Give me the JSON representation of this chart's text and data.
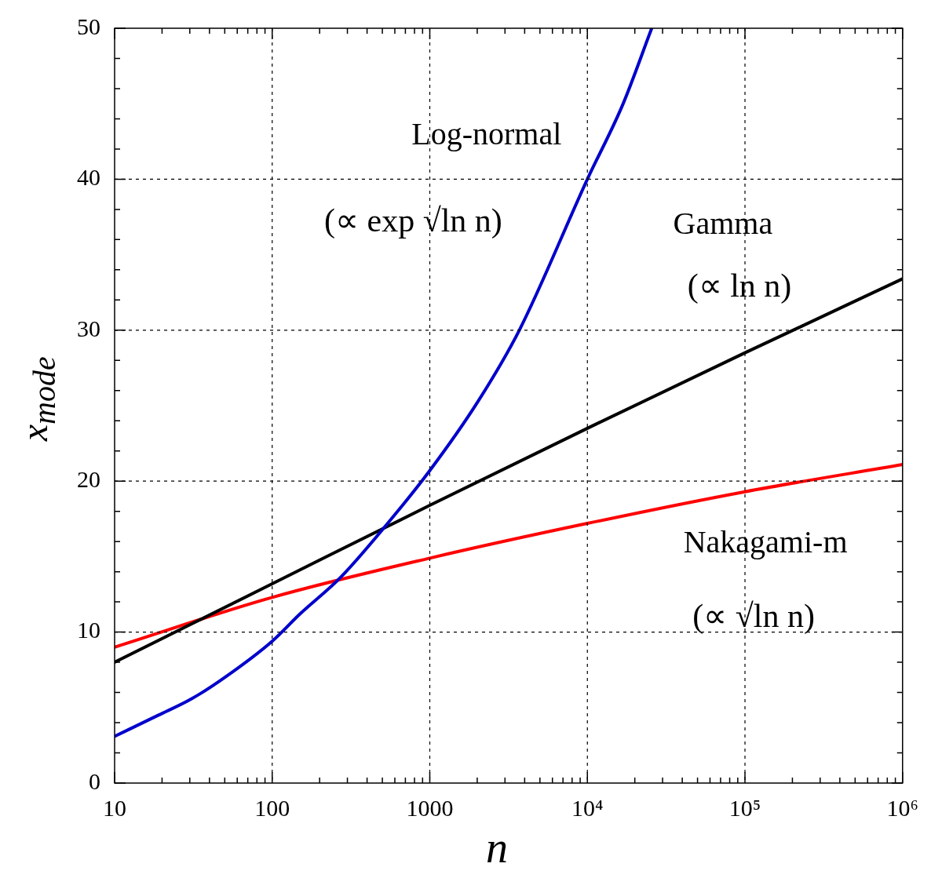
{
  "chart_data": {
    "type": "line",
    "xlabel": "n",
    "ylabel": "x$_{mode}$",
    "log": "x",
    "grid": true,
    "legend": false,
    "marker": "none",
    "line_style": "solid",
    "xlim": [
      10,
      1000000
    ],
    "ylim": [
      0,
      50
    ],
    "xticks": [
      10,
      {
        "value": 20,
        "label": null
      },
      {
        "value": 30,
        "label": null
      },
      {
        "value": 40,
        "label": null
      },
      {
        "value": 50,
        "label": null
      },
      {
        "value": 60,
        "label": null
      },
      {
        "value": 70,
        "label": null
      },
      {
        "value": 80,
        "label": null
      },
      {
        "value": 90,
        "label": null
      },
      100,
      {
        "value": 200,
        "label": null
      },
      {
        "value": 300,
        "label": null
      },
      {
        "value": 400,
        "label": null
      },
      {
        "value": 500,
        "label": null
      },
      {
        "value": 600,
        "label": null
      },
      {
        "value": 700,
        "label": null
      },
      {
        "value": 800,
        "label": null
      },
      {
        "value": 900,
        "label": null
      },
      1000,
      {
        "value": 2000,
        "label": null
      },
      {
        "value": 3000,
        "label": null
      },
      {
        "value": 4000,
        "label": null
      },
      {
        "value": 5000,
        "label": null
      },
      {
        "value": 6000,
        "label": null
      },
      {
        "value": 7000,
        "label": null
      },
      {
        "value": 8000,
        "label": null
      },
      {
        "value": 9000,
        "label": null
      },
      {
        "value": 10000,
        "label": "10⁴"
      },
      {
        "value": 20000,
        "label": null
      },
      {
        "value": 30000,
        "label": null
      },
      {
        "value": 40000,
        "label": null
      },
      {
        "value": 50000,
        "label": null
      },
      {
        "value": 60000,
        "label": null
      },
      {
        "value": 70000,
        "label": null
      },
      {
        "value": 80000,
        "label": null
      },
      {
        "value": 90000,
        "label": null
      },
      {
        "value": 100000,
        "label": "10⁵"
      },
      {
        "value": 200000,
        "label": null
      },
      {
        "value": 300000,
        "label": null
      },
      {
        "value": 400000,
        "label": null
      },
      {
        "value": 500000,
        "label": null
      },
      {
        "value": 600000,
        "label": null
      },
      {
        "value": 700000,
        "label": null
      },
      {
        "value": 800000,
        "label": null
      },
      {
        "value": 900000,
        "label": null
      },
      {
        "value": 1000000,
        "label": "10⁶"
      }
    ],
    "yticks": [
      0,
      {
        "value": 2,
        "label": null
      },
      {
        "value": 4,
        "label": null
      },
      {
        "value": 6,
        "label": null
      },
      {
        "value": 8,
        "label": null
      },
      10,
      {
        "value": 12,
        "label": null
      },
      {
        "value": 14,
        "label": null
      },
      {
        "value": 16,
        "label": null
      },
      {
        "value": 18,
        "label": null
      },
      20,
      {
        "value": 22,
        "label": null
      },
      {
        "value": 24,
        "label": null
      },
      {
        "value": 26,
        "label": null
      },
      {
        "value": 28,
        "label": null
      },
      30,
      {
        "value": 32,
        "label": null
      },
      {
        "value": 34,
        "label": null
      },
      {
        "value": 36,
        "label": null
      },
      {
        "value": 38,
        "label": null
      },
      40,
      {
        "value": 42,
        "label": null
      },
      {
        "value": 44,
        "label": null
      },
      {
        "value": 46,
        "label": null
      },
      {
        "value": 48,
        "label": null
      },
      50
    ],
    "series": [
      {
        "color": "#0000cc",
        "x": [
          10,
          19,
          31,
          50,
          100,
          150,
          270,
          530,
          1000,
          2000,
          3700,
          10000,
          16700,
          25600
        ],
        "values": [
          3.1,
          4.5,
          5.6,
          7.0,
          9.4,
          11.2,
          13.6,
          17.1,
          20.7,
          25.2,
          30,
          40,
          44.9,
          50
        ]
      },
      {
        "color": "#000000",
        "x": [
          10,
          100,
          1000,
          10000,
          100000,
          1000000
        ],
        "values": [
          8,
          13.2,
          18.4,
          23.5,
          28.5,
          33.4
        ]
      },
      {
        "color": "#ff0000",
        "x": [
          10,
          100,
          1000,
          10000,
          100000,
          1000000
        ],
        "values": [
          9.0,
          12.3,
          14.9,
          17.2,
          19.3,
          21.1
        ]
      }
    ],
    "annotations": [
      "Log-normal",
      "(∝ exp √ln n)",
      "Gamma",
      "(∝ ln n)",
      "Nakagami-m",
      "(∝ √ln n)"
    ]
  }
}
